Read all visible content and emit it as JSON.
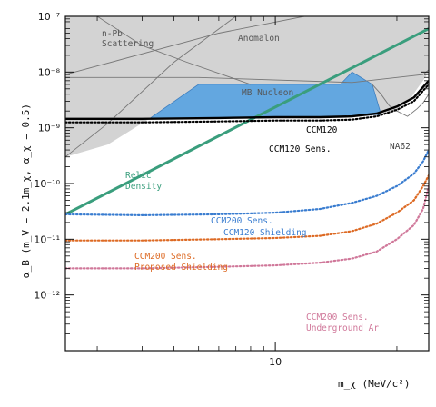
{
  "chart_data": {
    "type": "line",
    "x_axis": {
      "label": "m_χ (MeV/c²)",
      "scale": "log",
      "range": [
        1.5,
        40
      ],
      "tick_labels": [
        "10"
      ]
    },
    "y_axis": {
      "label": "α_B (m_V = 2.1m_χ, α_χ = 0.5)",
      "scale": "log",
      "range": [
        1e-13,
        1e-07
      ],
      "tick_labels": [
        "10⁻¹²",
        "10⁻¹¹",
        "10⁻¹⁰",
        "10⁻⁹",
        "10⁻⁸",
        "10⁻⁷"
      ]
    },
    "grid": false,
    "colors": {
      "excluded": "#d3d3d3",
      "excluded_edge": "#777777",
      "ccm120_region": "#63a7e0",
      "relic": "#3a9e7d",
      "ccm200_ccm120": "#3a7dd0",
      "ccm200_proposed": "#dd6a24",
      "ccm200_underground": "#d0789a",
      "ccm120": "#000000"
    },
    "labels": {
      "n_pb_1": "n-Pb",
      "n_pb_2": "Scattering",
      "anomalon": "Anomalon",
      "mb_nucleon": "MB Nucleon",
      "ccm120": "CCM120",
      "ccm120_sens": "CCM120 Sens.",
      "na62": "NA62",
      "relic_1": "Relic",
      "relic_2": "Density",
      "ccm200_a1": "CCM200 Sens.",
      "ccm200_a2": "CCM120 Shielding",
      "ccm200_b1": "CCM200 Sens.",
      "ccm200_b2": "Proposed Shielding",
      "ccm200_c1": "CCM200 Sens.",
      "ccm200_c2": "Underground Ar"
    },
    "series": [
      {
        "name": "Relic Density",
        "style": "solid",
        "color": "#3a9e7d",
        "x": [
          1.5,
          40
        ],
        "y": [
          2.8e-11,
          6e-08
        ]
      },
      {
        "name": "CCM120",
        "style": "solid",
        "color": "#000000",
        "x": [
          1.5,
          3,
          6,
          10,
          15,
          20,
          25,
          30,
          35,
          40
        ],
        "y": [
          1.45e-09,
          1.45e-09,
          1.5e-09,
          1.55e-09,
          1.55e-09,
          1.6e-09,
          1.8e-09,
          2.4e-09,
          3.5e-09,
          7e-09
        ]
      },
      {
        "name": "CCM120 Sens.",
        "style": "dotted",
        "color": "#000000",
        "x": [
          1.5,
          3,
          6,
          10,
          15,
          20,
          25,
          30,
          35,
          40
        ],
        "y": [
          1.25e-09,
          1.25e-09,
          1.3e-09,
          1.35e-09,
          1.35e-09,
          1.4e-09,
          1.6e-09,
          2.1e-09,
          3e-09,
          6e-09
        ]
      },
      {
        "name": "CCM200 Sens. CCM120 Shielding",
        "style": "dotted",
        "color": "#3a7dd0",
        "x": [
          1.5,
          3,
          6,
          10,
          15,
          20,
          25,
          30,
          35,
          38,
          40
        ],
        "y": [
          2.8e-11,
          2.7e-11,
          2.8e-11,
          3e-11,
          3.5e-11,
          4.5e-11,
          6e-11,
          9e-11,
          1.5e-10,
          2.5e-10,
          4e-10
        ]
      },
      {
        "name": "CCM200 Sens. Proposed Shielding",
        "style": "dotted",
        "color": "#dd6a24",
        "x": [
          1.5,
          3,
          6,
          10,
          15,
          20,
          25,
          30,
          35,
          38,
          40
        ],
        "y": [
          9.5e-12,
          9.5e-12,
          1e-11,
          1.05e-11,
          1.15e-11,
          1.4e-11,
          1.9e-11,
          3e-11,
          5e-11,
          9e-11,
          1.4e-10
        ]
      },
      {
        "name": "CCM200 Sens. Underground Ar",
        "style": "dotted",
        "color": "#d0789a",
        "x": [
          1.5,
          3,
          6,
          10,
          15,
          20,
          25,
          30,
          35,
          38,
          40
        ],
        "y": [
          3e-12,
          3e-12,
          3.2e-12,
          3.4e-12,
          3.8e-12,
          4.5e-12,
          6e-12,
          1e-11,
          1.8e-11,
          3.5e-11,
          9e-11
        ]
      }
    ]
  }
}
